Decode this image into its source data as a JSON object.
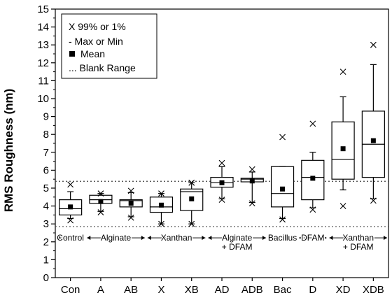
{
  "chart_data": {
    "type": "box",
    "ylabel": "RMS Roughness (nm)",
    "ylim": [
      0,
      15
    ],
    "yticks": [
      0,
      1,
      2,
      3,
      4,
      5,
      6,
      7,
      8,
      9,
      10,
      11,
      12,
      13,
      14,
      15
    ],
    "categories": [
      "Con",
      "A",
      "AB",
      "X",
      "XB",
      "AD",
      "ADB",
      "Bac",
      "D",
      "XD",
      "XDB"
    ],
    "boxes": [
      {
        "q1": 3.5,
        "median": 3.85,
        "q3": 4.35,
        "whisker_low": 3.3,
        "whisker_high": 4.8,
        "mean": 3.95,
        "p1": 3.2,
        "p99": 5.2
      },
      {
        "q1": 4.15,
        "median": 4.35,
        "q3": 4.6,
        "whisker_low": 3.7,
        "whisker_high": 4.7,
        "mean": 4.25,
        "p1": 3.65,
        "p99": 4.7
      },
      {
        "q1": 3.95,
        "median": 4.3,
        "q3": 4.35,
        "whisker_low": 3.4,
        "whisker_high": 4.75,
        "mean": 4.15,
        "p1": 3.35,
        "p99": 4.85
      },
      {
        "q1": 3.65,
        "median": 3.95,
        "q3": 4.5,
        "whisker_low": 3.0,
        "whisker_high": 4.7,
        "mean": 4.05,
        "p1": 3.0,
        "p99": 4.7
      },
      {
        "q1": 3.75,
        "median": 4.8,
        "q3": 4.95,
        "whisker_low": 3.0,
        "whisker_high": 5.3,
        "mean": 4.4,
        "p1": 3.0,
        "p99": 5.3
      },
      {
        "q1": 5.05,
        "median": 5.3,
        "q3": 5.6,
        "whisker_low": 4.4,
        "whisker_high": 6.2,
        "mean": 5.3,
        "p1": 4.35,
        "p99": 6.4
      },
      {
        "q1": 5.35,
        "median": 5.5,
        "q3": 5.55,
        "whisker_low": 4.2,
        "whisker_high": 5.9,
        "mean": 5.4,
        "p1": 4.15,
        "p99": 6.05
      },
      {
        "q1": 3.95,
        "median": 4.7,
        "q3": 6.2,
        "whisker_low": 3.3,
        "whisker_high": 6.2,
        "mean": 4.95,
        "p1": 3.25,
        "p99": 7.85
      },
      {
        "q1": 4.35,
        "median": 5.6,
        "q3": 6.55,
        "whisker_low": 3.9,
        "whisker_high": 7.0,
        "mean": 5.55,
        "p1": 3.8,
        "p99": 8.6
      },
      {
        "q1": 5.5,
        "median": 6.6,
        "q3": 8.7,
        "whisker_low": 4.9,
        "whisker_high": 10.1,
        "mean": 7.2,
        "p1": 4.0,
        "p99": 11.5
      },
      {
        "q1": 5.6,
        "median": 7.45,
        "q3": 9.3,
        "whisker_low": 4.4,
        "whisker_high": 11.9,
        "mean": 7.65,
        "p1": 4.3,
        "p99": 13.0
      }
    ],
    "reference_lines": [
      {
        "y": 2.85,
        "style": "dotted"
      },
      {
        "y": 5.38,
        "style": "dotted"
      }
    ],
    "legend": {
      "position": "top-left",
      "entries": [
        "X 99% or 1%",
        "- Max or Min",
        "Mean",
        "... Blank Range"
      ]
    },
    "groups": [
      {
        "label": "Control",
        "from": 0,
        "to": 0
      },
      {
        "label": "Alginate",
        "from": 1,
        "to": 2
      },
      {
        "label": "Xanthan",
        "from": 3,
        "to": 4
      },
      {
        "label": "Alginate\n+ DFAM",
        "from": 5,
        "to": 6
      },
      {
        "label": "Bacillus",
        "from": 7,
        "to": 7
      },
      {
        "label": "DFAM",
        "from": 8,
        "to": 8
      },
      {
        "label": "Xanthan\n+ DFAM",
        "from": 9,
        "to": 10
      }
    ],
    "grid": false
  }
}
